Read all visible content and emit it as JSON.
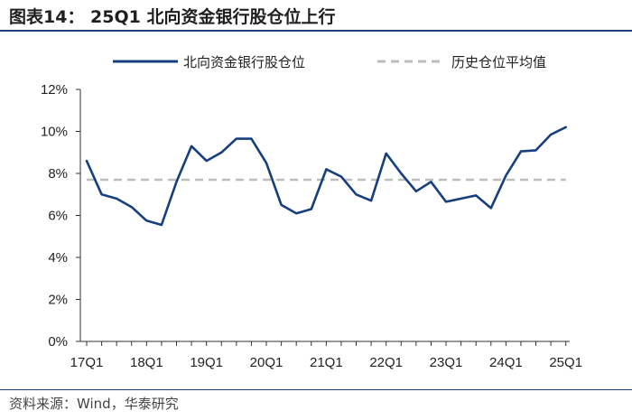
{
  "header": {
    "title": "图表14：  25Q1 北向资金银行股仓位上行"
  },
  "footer": {
    "source": "资料来源：Wind，华泰研究"
  },
  "colors": {
    "series": "#173f7e",
    "average": "#bdbdbd",
    "axis": "#333333",
    "rule": "#1f3f7a"
  },
  "chart_data": {
    "type": "line",
    "title": "",
    "xlabel": "",
    "ylabel": "",
    "x_tick_labels": [
      "17Q1",
      "18Q1",
      "19Q1",
      "20Q1",
      "21Q1",
      "22Q1",
      "23Q1",
      "24Q1",
      "25Q1"
    ],
    "y_tick_labels": [
      "0%",
      "2%",
      "4%",
      "6%",
      "8%",
      "10%",
      "12%"
    ],
    "ylim": [
      0,
      12
    ],
    "y_unit": "%",
    "grid": false,
    "legend_position": "top",
    "series": [
      {
        "name": "北向资金银行股仓位",
        "style": "solid",
        "x": [
          "17Q1",
          "17Q2",
          "17Q3",
          "17Q4",
          "18Q1",
          "18Q2",
          "18Q3",
          "18Q4",
          "19Q1",
          "19Q2",
          "19Q3",
          "19Q4",
          "20Q1",
          "20Q2",
          "20Q3",
          "20Q4",
          "21Q1",
          "21Q2",
          "21Q3",
          "21Q4",
          "22Q1",
          "22Q2",
          "22Q3",
          "22Q4",
          "23Q1",
          "23Q2",
          "23Q3",
          "23Q4",
          "24Q1",
          "24Q2",
          "24Q3",
          "24Q4",
          "25Q1"
        ],
        "values": [
          8.6,
          7.0,
          6.8,
          6.4,
          5.75,
          5.55,
          7.6,
          9.3,
          8.6,
          9.0,
          9.65,
          9.65,
          8.5,
          6.5,
          6.1,
          6.3,
          8.2,
          7.85,
          7.0,
          6.7,
          8.95,
          8.0,
          7.15,
          7.6,
          6.65,
          6.8,
          6.95,
          6.35,
          7.9,
          9.05,
          9.1,
          9.85,
          10.2
        ]
      },
      {
        "name": "历史仓位平均值",
        "style": "dashed",
        "values": [
          7.7
        ]
      }
    ]
  }
}
